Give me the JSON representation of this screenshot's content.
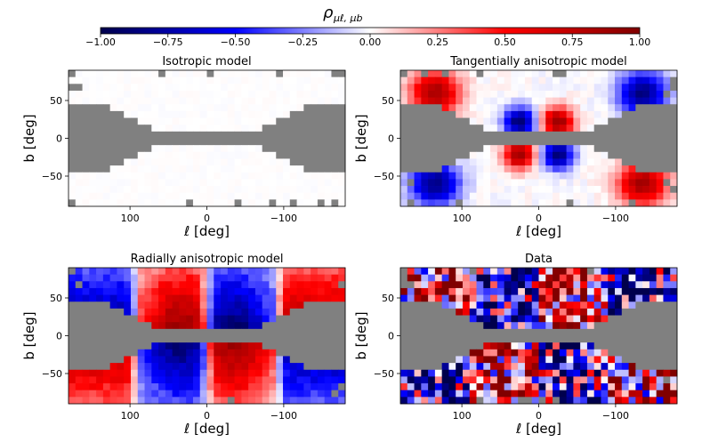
{
  "chart_data": {
    "type": "heatmap",
    "colorbar": {
      "title": "ρ",
      "title_subscript": "μℓ, μb",
      "colormap": "seismic",
      "colors": [
        "#00004c",
        "#0000ff",
        "#ffffff",
        "#ff0000",
        "#800000"
      ],
      "range": [
        -1.0,
        1.0
      ],
      "ticks": [
        "−1.00",
        "−0.75",
        "−0.50",
        "−0.25",
        "0.00",
        "0.25",
        "0.50",
        "0.75",
        "1.00"
      ],
      "tick_values": [
        -1.0,
        -0.75,
        -0.5,
        -0.25,
        0.0,
        0.25,
        0.5,
        0.75,
        1.0
      ]
    },
    "masked_color": "#808080",
    "xlim": [
      180,
      -180
    ],
    "ylim": [
      -90,
      90
    ],
    "xticks": [
      100,
      0,
      -100
    ],
    "xtick_labels": [
      "100",
      "0",
      "−100"
    ],
    "yticks": [
      50,
      0,
      -50
    ],
    "ytick_labels": [
      "50",
      "0",
      "−50"
    ],
    "xlabel": "ℓ [deg]",
    "ylabel": "b [deg]",
    "grid_cells": [
      40,
      20
    ],
    "panels": [
      {
        "title": "Isotropic model",
        "pattern": "isotropic",
        "peak": 0.02
      },
      {
        "title": "Tangentially anisotropic model",
        "pattern": "tangential",
        "peak": 0.85
      },
      {
        "title": "Radially anisotropic model",
        "pattern": "radial",
        "peak": 0.95
      },
      {
        "title": "Data",
        "pattern": "data",
        "peak": 0.8
      }
    ]
  }
}
